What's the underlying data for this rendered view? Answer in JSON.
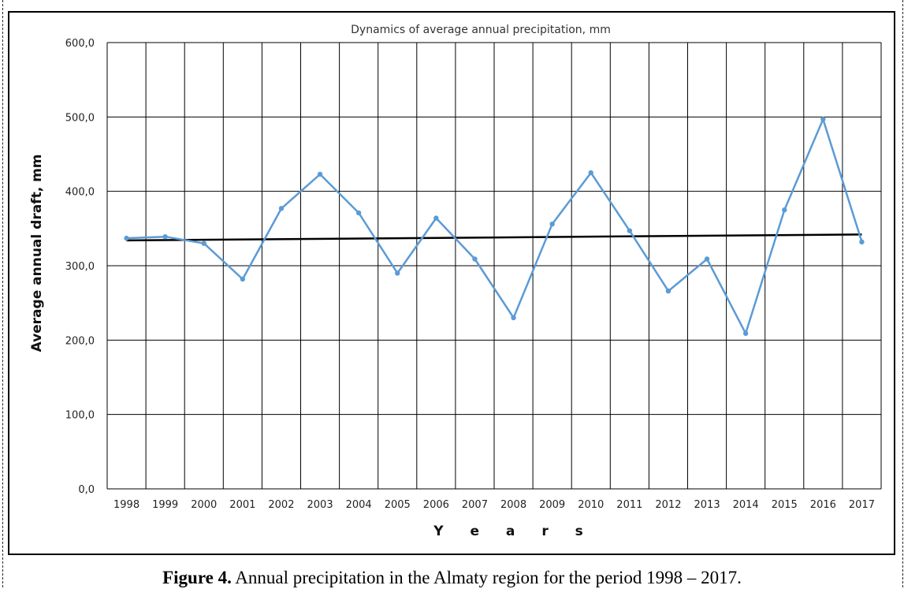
{
  "chart_data": {
    "type": "line",
    "title": "Dynamics of average annual precipitation, mm",
    "xlabel": "Y e a r s",
    "ylabel": "Average annual draft, mm",
    "categories": [
      "1998",
      "1999",
      "2000",
      "2001",
      "2002",
      "2003",
      "2004",
      "2005",
      "2006",
      "2007",
      "2008",
      "2009",
      "2010",
      "2011",
      "2012",
      "2013",
      "2014",
      "2015",
      "2016",
      "2017"
    ],
    "series": [
      {
        "values": [
          337,
          339,
          330,
          282,
          377,
          423,
          371,
          290,
          364,
          309,
          230,
          356,
          425,
          347,
          266,
          309,
          209,
          375,
          497,
          332
        ],
        "color": "#5b9bd5"
      }
    ],
    "trendline": {
      "start": 334,
      "end": 342,
      "color": "#000000"
    },
    "ylim": [
      0,
      600
    ],
    "yticks": [
      "0,0",
      "100,0",
      "200,0",
      "300,0",
      "400,0",
      "500,0",
      "600,0"
    ],
    "grid": true,
    "legend": "none"
  },
  "caption": {
    "label": "Figure 4.",
    "text": " Annual precipitation in the Almaty region for the period 1998 – 2017."
  }
}
